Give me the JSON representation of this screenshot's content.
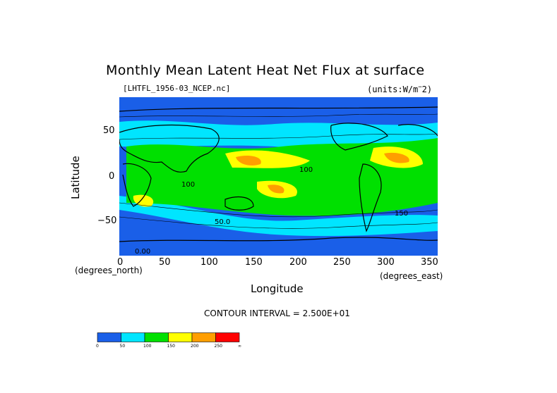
{
  "title": "Monthly Mean Latent Heat Net Flux at surface",
  "file_label": "[LHTFL_1956-03_NCEP.nc]",
  "units_label": "(units:W/m^-2)",
  "map": {
    "y_ticks": [
      "50",
      "0",
      "−50"
    ],
    "x_ticks": [
      "0",
      "50",
      "100",
      "150",
      "200",
      "250",
      "300",
      "350"
    ],
    "x_axis_title": "Longitude",
    "y_axis_title": "Latitude",
    "y_unit": "(degrees_north)",
    "x_unit": "(degrees_east)",
    "contour_labels": [
      "100",
      "100",
      "50.0",
      "150",
      "0.00"
    ]
  },
  "contour_interval": "CONTOUR INTERVAL = 2.500E+01",
  "legend": {
    "colors": [
      "#1a5fe8",
      "#00e5ff",
      "#00e000",
      "#ffff00",
      "#ff9e00",
      "#ff0000"
    ],
    "ticks": [
      "0",
      "50",
      "100",
      "150",
      "200",
      "250",
      "∞"
    ]
  }
}
